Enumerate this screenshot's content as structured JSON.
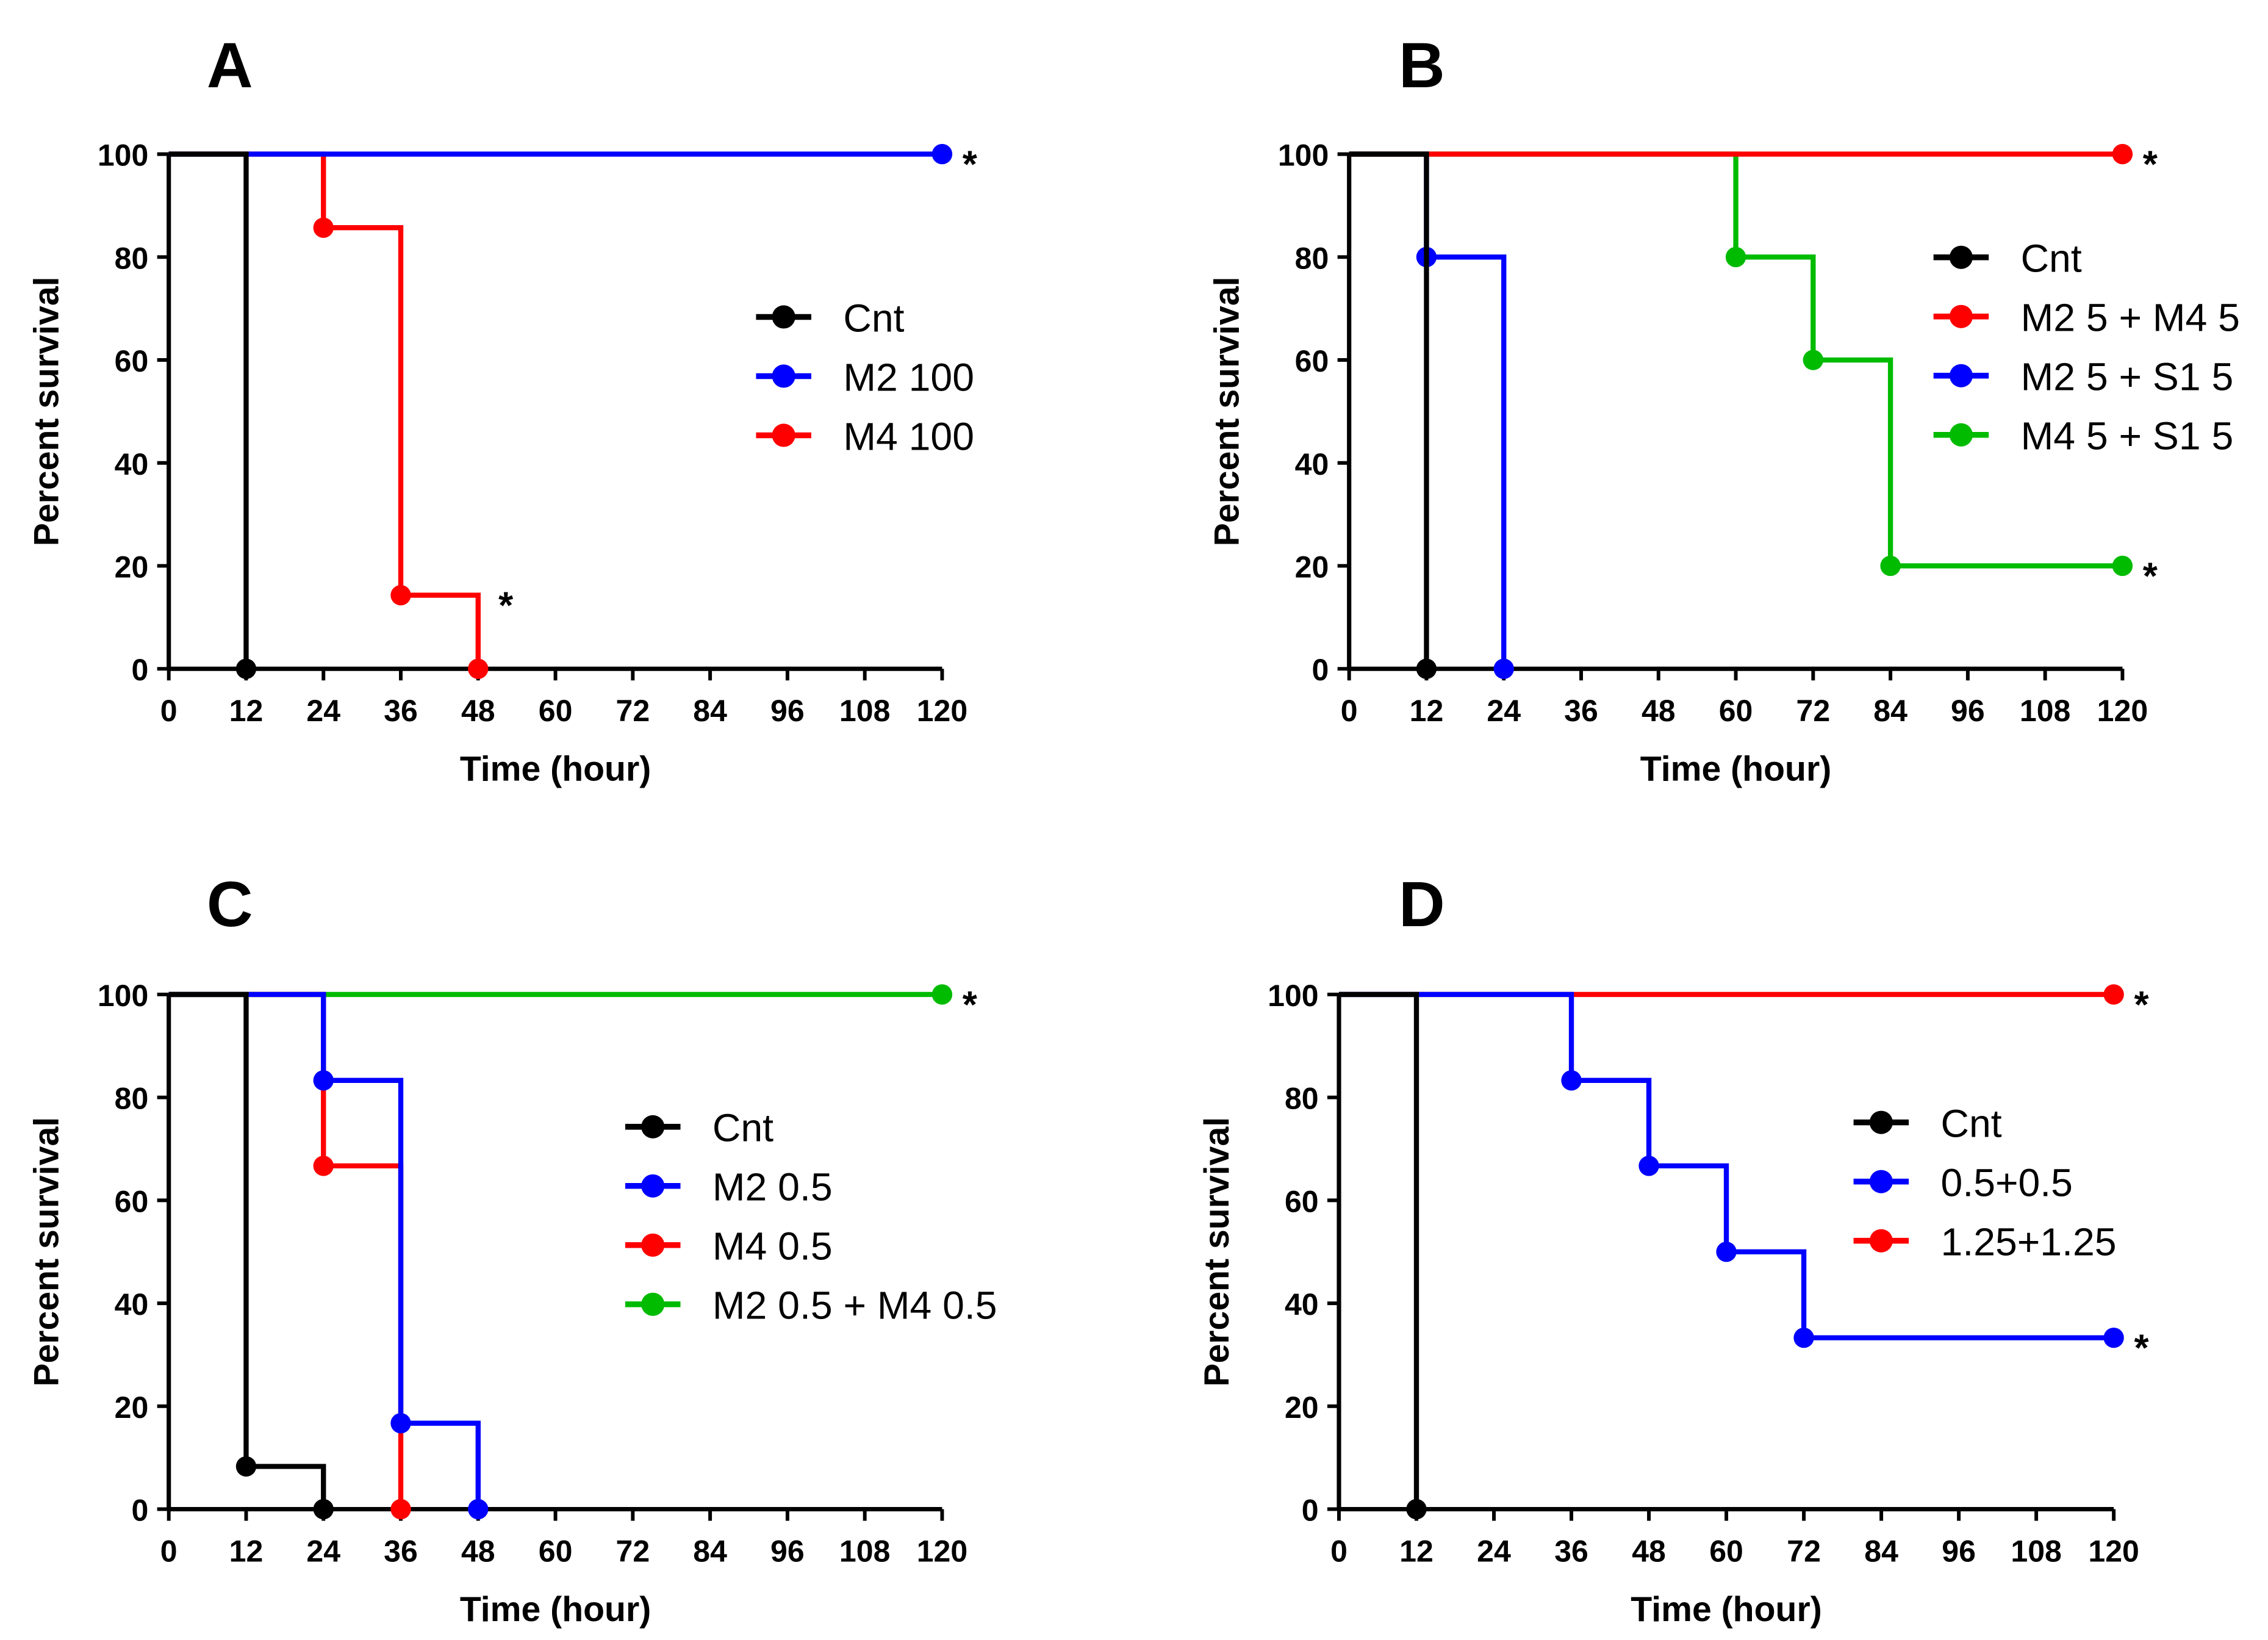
{
  "chart_data": [
    {
      "type": "line",
      "subtype": "kaplan-meier step",
      "panel": "A",
      "xlabel": "Time (hour)",
      "ylabel": "Percent survival",
      "xlim": [
        0,
        120
      ],
      "ylim": [
        0,
        100
      ],
      "xticks": [
        0,
        12,
        24,
        36,
        48,
        60,
        72,
        84,
        96,
        108,
        120
      ],
      "yticks": [
        0,
        20,
        40,
        60,
        80,
        100
      ],
      "legend_position": "right-center",
      "series": [
        {
          "name": "Cnt",
          "color": "#000000",
          "points": [
            [
              0,
              100
            ],
            [
              12,
              0
            ]
          ]
        },
        {
          "name": "M2 100",
          "color": "#0000ff",
          "points": [
            [
              0,
              100
            ],
            [
              120,
              100
            ]
          ],
          "asterisk": {
            "text": "*",
            "at": [
              120,
              100
            ]
          }
        },
        {
          "name": "M4 100",
          "color": "#ff0000",
          "points": [
            [
              0,
              100
            ],
            [
              24,
              85.7
            ],
            [
              36,
              14.3
            ],
            [
              48,
              0
            ]
          ],
          "asterisk": {
            "text": "*",
            "at": [
              48,
              14.3
            ]
          }
        }
      ]
    },
    {
      "type": "line",
      "subtype": "kaplan-meier step",
      "panel": "B",
      "xlabel": "Time (hour)",
      "ylabel": "Percent survival",
      "xlim": [
        0,
        120
      ],
      "ylim": [
        0,
        100
      ],
      "xticks": [
        0,
        12,
        24,
        36,
        48,
        60,
        72,
        84,
        96,
        108,
        120
      ],
      "yticks": [
        0,
        20,
        40,
        60,
        80,
        100
      ],
      "legend_position": "right-center",
      "series": [
        {
          "name": "Cnt",
          "color": "#000000",
          "points": [
            [
              0,
              100
            ],
            [
              12,
              0
            ]
          ]
        },
        {
          "name": "M2 5 + M4 5",
          "color": "#ff0000",
          "points": [
            [
              0,
              100
            ],
            [
              120,
              100
            ]
          ],
          "asterisk": {
            "text": "*",
            "at": [
              120,
              100
            ]
          }
        },
        {
          "name": "M2 5 + S1 5",
          "color": "#0000ff",
          "points": [
            [
              0,
              100
            ],
            [
              12,
              80
            ],
            [
              24,
              0
            ]
          ]
        },
        {
          "name": "M4 5 + S1 5",
          "color": "#00bb00",
          "points": [
            [
              0,
              100
            ],
            [
              60,
              80
            ],
            [
              72,
              60
            ],
            [
              84,
              20
            ],
            [
              120,
              20
            ]
          ],
          "asterisk": {
            "text": "*",
            "at": [
              120,
              20
            ]
          }
        }
      ]
    },
    {
      "type": "line",
      "subtype": "kaplan-meier step",
      "panel": "C",
      "xlabel": "Time (hour)",
      "ylabel": "Percent survival",
      "xlim": [
        0,
        120
      ],
      "ylim": [
        0,
        100
      ],
      "xticks": [
        0,
        12,
        24,
        36,
        48,
        60,
        72,
        84,
        96,
        108,
        120
      ],
      "yticks": [
        0,
        20,
        40,
        60,
        80,
        100
      ],
      "legend_position": "right-center",
      "series": [
        {
          "name": "Cnt",
          "color": "#000000",
          "points": [
            [
              0,
              100
            ],
            [
              12,
              8.3
            ],
            [
              24,
              0
            ]
          ]
        },
        {
          "name": "M2 0.5",
          "color": "#0000ff",
          "points": [
            [
              0,
              100
            ],
            [
              24,
              83.3
            ],
            [
              36,
              16.7
            ],
            [
              48,
              0
            ]
          ]
        },
        {
          "name": "M4 0.5",
          "color": "#ff0000",
          "points": [
            [
              0,
              100
            ],
            [
              24,
              66.7
            ],
            [
              36,
              0
            ]
          ]
        },
        {
          "name": "M2 0.5 + M4 0.5",
          "color": "#00bb00",
          "points": [
            [
              0,
              100
            ],
            [
              120,
              100
            ]
          ],
          "asterisk": {
            "text": "*",
            "at": [
              120,
              100
            ]
          }
        }
      ]
    },
    {
      "type": "line",
      "subtype": "kaplan-meier step",
      "panel": "D",
      "xlabel": "Time (hour)",
      "ylabel": "Percent survival",
      "xlim": [
        0,
        120
      ],
      "ylim": [
        0,
        100
      ],
      "xticks": [
        0,
        12,
        24,
        36,
        48,
        60,
        72,
        84,
        96,
        108,
        120
      ],
      "yticks": [
        0,
        20,
        40,
        60,
        80,
        100
      ],
      "legend_position": "right-center",
      "series": [
        {
          "name": "Cnt",
          "color": "#000000",
          "points": [
            [
              0,
              100
            ],
            [
              12,
              0
            ]
          ]
        },
        {
          "name": "0.5+0.5",
          "color": "#0000ff",
          "points": [
            [
              0,
              100
            ],
            [
              36,
              83.3
            ],
            [
              48,
              66.7
            ],
            [
              60,
              50
            ],
            [
              72,
              33.3
            ],
            [
              120,
              33.3
            ]
          ],
          "asterisk": {
            "text": "*",
            "at": [
              120,
              33.3
            ]
          }
        },
        {
          "name": "1.25+1.25",
          "color": "#ff0000",
          "points": [
            [
              0,
              100
            ],
            [
              120,
              100
            ]
          ],
          "asterisk": {
            "text": "*",
            "at": [
              120,
              100
            ]
          }
        }
      ]
    }
  ]
}
